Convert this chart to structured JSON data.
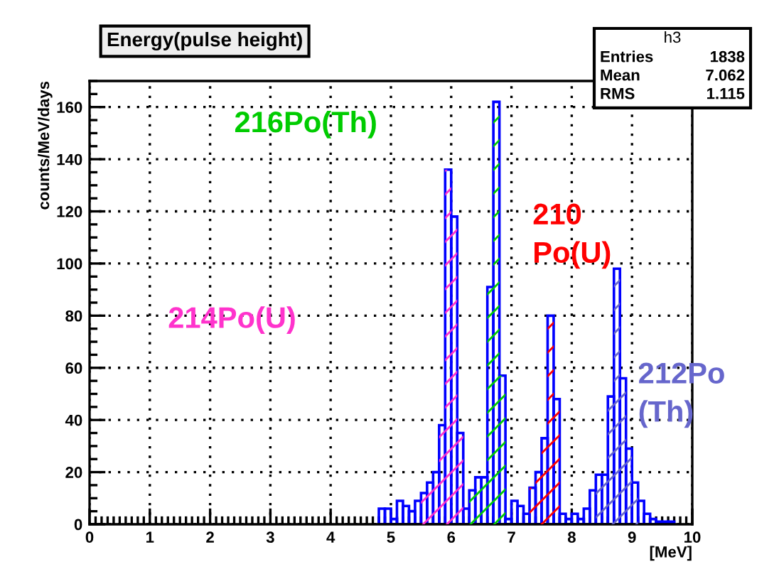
{
  "chart_data": {
    "type": "histogram",
    "title": "Energy(pulse height)",
    "xlabel": "[MeV]",
    "ylabel": "counts/MeV/days",
    "bins": [
      4.8,
      4.9,
      5,
      5.1,
      5.2,
      5.3,
      5.4,
      5.5,
      5.6,
      5.7,
      5.8,
      5.9,
      6,
      6.1,
      6.2,
      6.3,
      6.4,
      6.5,
      6.6,
      6.7,
      6.8,
      6.9,
      7,
      7.1,
      7.2,
      7.3,
      7.4,
      7.5,
      7.6,
      7.7,
      7.8,
      7.9,
      8,
      8.1,
      8.2,
      8.3,
      8.4,
      8.5,
      8.6,
      8.7,
      8.8,
      8.9,
      9,
      9.1,
      9.2,
      9.3,
      9.4,
      9.5,
      9.6,
      9.7
    ],
    "values": [
      6,
      6,
      2,
      9,
      7,
      5,
      9,
      12,
      16,
      20,
      38,
      136,
      118,
      35,
      6,
      13,
      18,
      18,
      91,
      162,
      57,
      2,
      9,
      7,
      4,
      14,
      20,
      33,
      80,
      48,
      4,
      2,
      4,
      2,
      6,
      13,
      19,
      19,
      49,
      98,
      56,
      29,
      16,
      9,
      4,
      2,
      1,
      1,
      1
    ],
    "color": "#0000ff",
    "colors": [
      null,
      null,
      null,
      null,
      null,
      null,
      null,
      "#ff33cc",
      "#ff33cc",
      "#ff33cc",
      "#ff33cc",
      "#ff33cc",
      "#ff33cc",
      "#ff33cc",
      null,
      "#00cc00",
      "#00cc00",
      "#00cc00",
      "#00cc00",
      "#00cc00",
      "#00cc00",
      null,
      null,
      null,
      null,
      "#ff0000",
      "#ff0000",
      "#ff0000",
      "#ff0000",
      "#ff0000",
      null,
      null,
      null,
      null,
      null,
      null,
      "#6666cc",
      "#6666cc",
      "#6666cc",
      "#6666cc",
      "#6666cc",
      "#6666cc",
      "#6666cc",
      null,
      null,
      null,
      null,
      null,
      null
    ],
    "annotations": [
      "214Po(U)",
      "216Po(Th)",
      "210\nPo(U)",
      "212Po\n(Th)",
      "h3",
      "Entries   1838",
      "Mean     7.062",
      "RMS      1.115"
    ],
    "xlim": [
      0,
      10
    ],
    "ylim": [
      0,
      170
    ],
    "xticks": [
      0,
      1,
      2,
      3,
      4,
      5,
      6,
      7,
      8,
      9,
      10
    ],
    "yticks": [
      0,
      20,
      40,
      60,
      80,
      100,
      120,
      140,
      160
    ],
    "grid": true
  }
}
